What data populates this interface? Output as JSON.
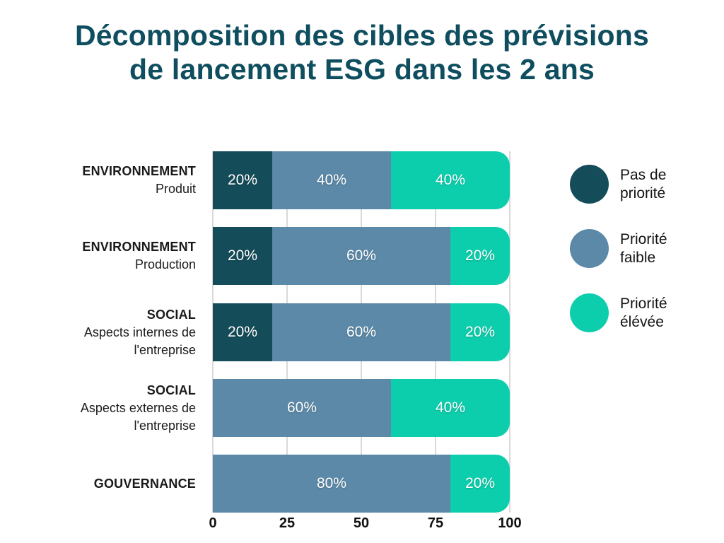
{
  "title_lines": [
    "Décomposition des cibles des prévisions",
    "de lancement ESG dans les 2 ans"
  ],
  "title_color": "#0f4e5f",
  "chart_data": {
    "type": "bar",
    "variant": "horizontal_stacked",
    "title": "Décomposition des cibles des prévisions de lancement ESG dans les 2 ans",
    "categories": [
      {
        "label": "ENVIRONNEMENT",
        "sublabel_lines": [
          "Produit"
        ]
      },
      {
        "label": "ENVIRONNEMENT",
        "sublabel_lines": [
          "Production"
        ]
      },
      {
        "label": "SOCIAL",
        "sublabel_lines": [
          "Aspects internes de",
          "l'entreprise"
        ]
      },
      {
        "label": "SOCIAL",
        "sublabel_lines": [
          "Aspects externes de",
          "l'entreprise"
        ]
      },
      {
        "label": "GOUVERNANCE",
        "sublabel_lines": []
      }
    ],
    "series": [
      {
        "name": "Pas de priorité",
        "color": "#144c5a",
        "values": [
          20,
          20,
          20,
          0,
          0
        ]
      },
      {
        "name": "Priorité faible",
        "color": "#5b89a7",
        "values": [
          40,
          60,
          60,
          60,
          80
        ]
      },
      {
        "name": "Priorité élévée",
        "color": "#0cceac",
        "values": [
          40,
          20,
          20,
          40,
          20
        ]
      }
    ],
    "value_suffix": "%",
    "xlabel": "",
    "ylabel": "",
    "xlim": [
      0,
      100
    ],
    "xticks": [
      0,
      25,
      50,
      75,
      100
    ],
    "grid": true,
    "gridline_color": "#d9d9d9",
    "legend_position": "right"
  },
  "legend": {
    "items": [
      {
        "lines": [
          "Pas de",
          "priorité"
        ],
        "color": "#144c5a"
      },
      {
        "lines": [
          "Priorité",
          "faible"
        ],
        "color": "#5b89a7"
      },
      {
        "lines": [
          "Priorité",
          "élévée"
        ],
        "color": "#0cceac"
      }
    ]
  }
}
